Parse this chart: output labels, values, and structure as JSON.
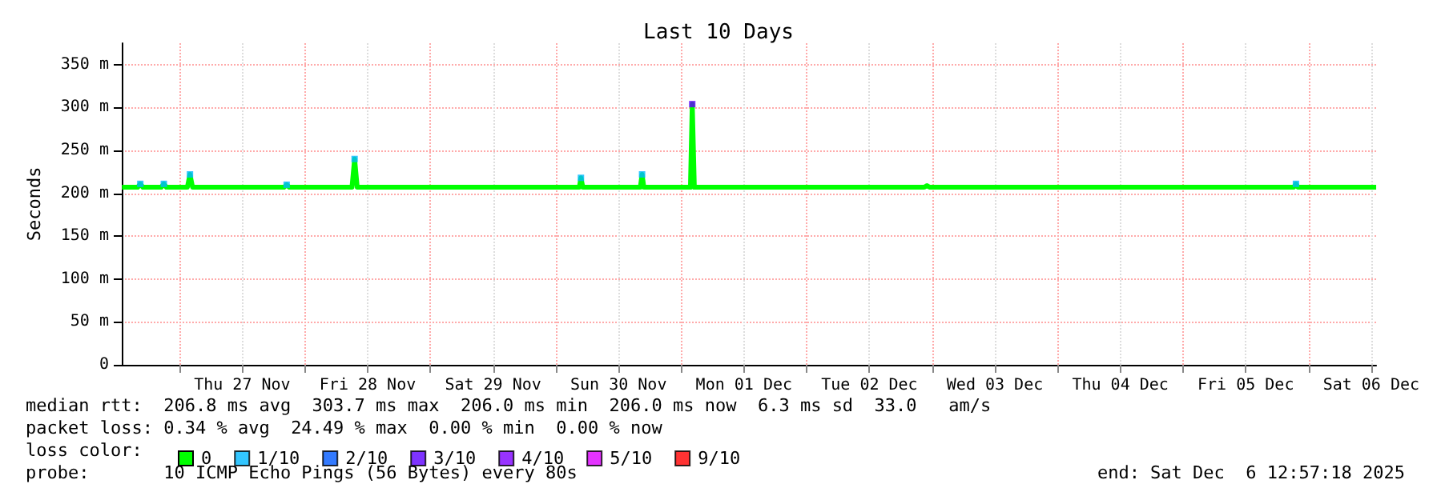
{
  "chart_data": {
    "type": "line",
    "title": "Last 10 Days",
    "ylabel": "Seconds",
    "legend_title": "loss color:",
    "xlim": [
      "2025-11-26T12:57",
      "2025-12-06T12:57"
    ],
    "xticks": [
      {
        "value": "2025-11-27T00:00",
        "label": null
      },
      {
        "value": "2025-11-27T12:00",
        "label": "Thu 27 Nov"
      },
      {
        "value": "2025-11-28T00:00",
        "label": null
      },
      {
        "value": "2025-11-28T12:00",
        "label": "Fri 28 Nov"
      },
      {
        "value": "2025-11-29T00:00",
        "label": null
      },
      {
        "value": "2025-11-29T12:00",
        "label": "Sat 29 Nov"
      },
      {
        "value": "2025-11-30T00:00",
        "label": null
      },
      {
        "value": "2025-11-30T12:00",
        "label": "Sun 30 Nov"
      },
      {
        "value": "2025-12-01T00:00",
        "label": null
      },
      {
        "value": "2025-12-01T12:00",
        "label": "Mon 01 Dec"
      },
      {
        "value": "2025-12-02T00:00",
        "label": null
      },
      {
        "value": "2025-12-02T12:00",
        "label": "Tue 02 Dec"
      },
      {
        "value": "2025-12-03T00:00",
        "label": null
      },
      {
        "value": "2025-12-03T12:00",
        "label": "Wed 03 Dec"
      },
      {
        "value": "2025-12-04T00:00",
        "label": null
      },
      {
        "value": "2025-12-04T12:00",
        "label": "Thu 04 Dec"
      },
      {
        "value": "2025-12-05T00:00",
        "label": null
      },
      {
        "value": "2025-12-05T12:00",
        "label": "Fri 05 Dec"
      },
      {
        "value": "2025-12-06T00:00",
        "label": null
      },
      {
        "value": "2025-12-06T12:00",
        "label": "Sat 06 Dec"
      }
    ],
    "ylim": [
      0,
      375
    ],
    "yticks": [
      0,
      {
        "value": 50,
        "label": "50 m"
      },
      {
        "value": 100,
        "label": "100 m"
      },
      {
        "value": 150,
        "label": "150 m"
      },
      {
        "value": 200,
        "label": "200 m"
      },
      {
        "value": 250,
        "label": "250 m"
      },
      {
        "value": 300,
        "label": "300 m"
      },
      {
        "value": 350,
        "label": "350 m"
      }
    ],
    "grid": true,
    "legend": "bottom",
    "line_style": "solid",
    "series": [
      {
        "name": "0",
        "color": "#00ff00",
        "marker": "none",
        "x": [
          "2025-11-26T13:00",
          "2025-11-26T16:00",
          "2025-11-26T16:30",
          "2025-11-26T17:00",
          "2025-11-26T20:30",
          "2025-11-26T21:00",
          "2025-11-26T21:30",
          "2025-11-27T01:30",
          "2025-11-27T02:00",
          "2025-11-27T02:30",
          "2025-11-27T20:00",
          "2025-11-27T20:30",
          "2025-11-27T21:00",
          "2025-11-28T09:00",
          "2025-11-28T09:30",
          "2025-11-28T10:00",
          "2025-11-30T04:30",
          "2025-11-30T04:48",
          "2025-11-30T05:10",
          "2025-11-30T16:10",
          "2025-11-30T16:30",
          "2025-11-30T16:50",
          "2025-12-01T01:45",
          "2025-12-01T02:06",
          "2025-12-01T02:30",
          "2025-12-02T22:30",
          "2025-12-02T23:00",
          "2025-12-02T23:30",
          "2025-12-05T21:10",
          "2025-12-05T21:36",
          "2025-12-05T22:00",
          "2025-12-06T12:57"
        ],
        "values": [
          207,
          207,
          211,
          207,
          207,
          211,
          207,
          207,
          222,
          207,
          207,
          210,
          207,
          207,
          240,
          207,
          207,
          218,
          207,
          207,
          222,
          207,
          207,
          304,
          207,
          207,
          209,
          207,
          207,
          211,
          207,
          207
        ]
      },
      {
        "name": "1/10",
        "color": "#00b8ff",
        "type": "scatter",
        "marker": "square",
        "x": [
          "2025-11-26T16:30",
          "2025-11-26T21:00",
          "2025-11-27T02:00",
          "2025-11-27T20:30",
          "2025-11-28T09:30",
          "2025-11-30T04:48",
          "2025-11-30T16:30",
          "2025-12-05T21:36"
        ],
        "values": [
          211,
          211,
          222,
          210,
          240,
          218,
          222,
          211
        ]
      },
      {
        "name": "2/10",
        "color": "#0059ff",
        "type": "scatter",
        "marker": "square"
      },
      {
        "name": "3/10",
        "color": "#5e00ff",
        "type": "scatter",
        "marker": "square",
        "x": [
          "2025-12-01T02:06"
        ],
        "values": [
          304
        ]
      },
      {
        "name": "4/10",
        "color": "#7e00ff",
        "type": "scatter",
        "marker": "square"
      },
      {
        "name": "5/10",
        "color": "#dd00ff",
        "type": "scatter",
        "marker": "square"
      },
      {
        "name": "9/10",
        "color": "#ff0000",
        "type": "scatter",
        "marker": "square"
      }
    ],
    "annotations": [
      "median rtt:  206.8 ms avg  303.7 ms max  206.0 ms min  206.0 ms now  6.3 ms sd  33.0   am/s",
      "packet loss: 0.34 % avg  24.49 % max  0.00 % min  0.00 % now",
      "probe:       10 ICMP Echo Pings (56 Bytes) every 80s",
      "end: Sat Dec  6 12:57:18 2025"
    ]
  }
}
